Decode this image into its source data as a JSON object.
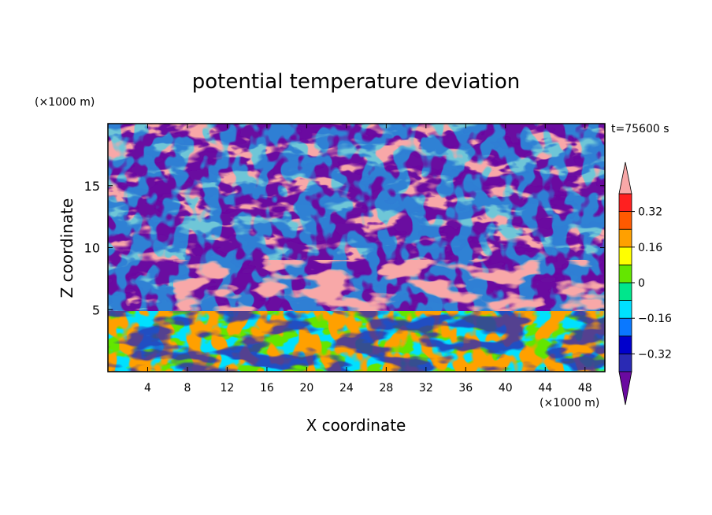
{
  "chart_data": {
    "type": "heatmap",
    "title": "potential temperature deviation",
    "xlabel": "X coordinate",
    "ylabel": "Z coordinate",
    "x_unit": "(×1000 m)",
    "y_unit": "(×1000 m)",
    "time_label": "t=75600 s",
    "xlim": [
      0,
      50
    ],
    "ylim": [
      0,
      20
    ],
    "x_ticks": [
      4,
      8,
      12,
      16,
      20,
      24,
      28,
      32,
      36,
      40,
      44,
      48
    ],
    "y_ticks": [
      5,
      10,
      15
    ],
    "colorbar": {
      "levels": [
        -0.4,
        -0.32,
        -0.24,
        -0.16,
        -0.08,
        0,
        0.08,
        0.16,
        0.24,
        0.32,
        0.4
      ],
      "tick_values": [
        0.32,
        0.16,
        0,
        -0.16,
        -0.32
      ],
      "tick_labels": [
        "0.32",
        "0.16",
        "0",
        "−0.16",
        "−0.32"
      ],
      "colors_low_to_high": [
        "#6a0aa0",
        "#2a2ab4",
        "#0000cc",
        "#0a78ff",
        "#00e0ff",
        "#00e68c",
        "#64e600",
        "#ffff00",
        "#ffa000",
        "#ff5a00",
        "#ff2020",
        "#f8a8a8"
      ],
      "extend": "both"
    },
    "field_description_rows": [
      {
        "z_range": [
          16,
          20
        ],
        "dominant": "mixed purple and pink with colored edges"
      },
      {
        "z_range": [
          12,
          16
        ],
        "dominant": "pink band left, purple patches"
      },
      {
        "z_range": [
          8,
          12
        ],
        "dominant": "purple"
      },
      {
        "z_range": [
          5,
          8
        ],
        "dominant": "pink"
      },
      {
        "z_range": [
          0,
          5
        ],
        "dominant": "turbulent cyan, green, yellow, orange, purple"
      }
    ]
  }
}
